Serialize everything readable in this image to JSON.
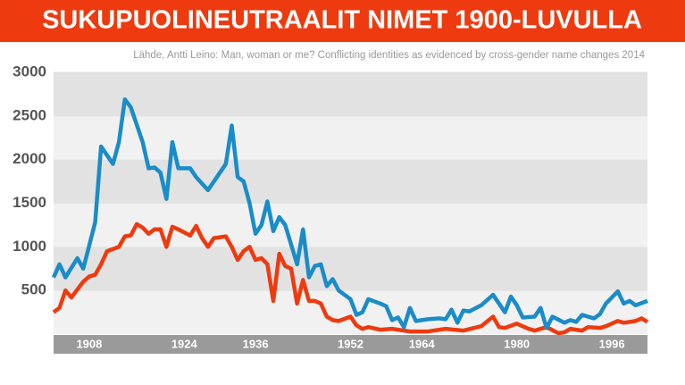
{
  "chart_data": {
    "type": "line",
    "title": "SUKUPUOLINEUTRAALIT NIMET 1900-LUVULLA",
    "subtitle": "Lähde, Antti Leino: Man, woman or me? Conflicting identities as evidenced by cross-gender name changes 2014",
    "xlim": [
      1902,
      2002
    ],
    "xticks": [
      1908,
      1924,
      1936,
      1952,
      1964,
      1980,
      1996
    ],
    "ylim": [
      0,
      3000
    ],
    "yticks": [
      500,
      1000,
      1500,
      2000,
      2500,
      3000
    ],
    "grid": true,
    "series": [
      {
        "color": "#1a8cc8",
        "x": [
          1902,
          1903,
          1904,
          1906,
          1907,
          1909,
          1910,
          1912,
          1913,
          1914,
          1915,
          1917,
          1918,
          1919,
          1920,
          1921,
          1922,
          1923,
          1925,
          1926,
          1928,
          1930,
          1931,
          1932,
          1933,
          1934,
          1935,
          1936,
          1937,
          1938,
          1939,
          1940,
          1941,
          1943,
          1944,
          1945,
          1946,
          1947,
          1948,
          1949,
          1950,
          1952,
          1953,
          1954,
          1955,
          1957,
          1958,
          1959,
          1960,
          1961,
          1962,
          1963,
          1965,
          1967,
          1968,
          1969,
          1970,
          1971,
          1972,
          1974,
          1976,
          1977,
          1978,
          1979,
          1980,
          1981,
          1983,
          1984,
          1985,
          1986,
          1988,
          1989,
          1990,
          1991,
          1993,
          1994,
          1995,
          1997,
          1998,
          1999,
          2000,
          2002
        ],
        "values": [
          650,
          800,
          650,
          870,
          750,
          1280,
          2150,
          1950,
          2200,
          2690,
          2600,
          2200,
          1900,
          1910,
          1850,
          1550,
          2200,
          1900,
          1900,
          1800,
          1650,
          1850,
          1950,
          2390,
          1800,
          1750,
          1500,
          1150,
          1250,
          1520,
          1180,
          1340,
          1250,
          800,
          1200,
          650,
          780,
          800,
          550,
          630,
          500,
          400,
          220,
          250,
          400,
          350,
          320,
          160,
          190,
          80,
          300,
          150,
          170,
          180,
          170,
          280,
          130,
          270,
          260,
          330,
          450,
          350,
          250,
          430,
          330,
          190,
          200,
          300,
          70,
          200,
          130,
          160,
          140,
          220,
          180,
          230,
          350,
          490,
          350,
          380,
          330,
          380
        ]
      },
      {
        "color": "#ee3a0f",
        "x": [
          1902,
          1903,
          1904,
          1905,
          1907,
          1908,
          1909,
          1910,
          1911,
          1913,
          1914,
          1915,
          1916,
          1917,
          1918,
          1919,
          1920,
          1921,
          1922,
          1923,
          1925,
          1926,
          1927,
          1928,
          1929,
          1931,
          1932,
          1933,
          1934,
          1935,
          1936,
          1937,
          1938,
          1939,
          1940,
          1941,
          1942,
          1943,
          1944,
          1945,
          1946,
          1947,
          1948,
          1949,
          1950,
          1952,
          1953,
          1954,
          1955,
          1957,
          1959,
          1962,
          1965,
          1968,
          1971,
          1974,
          1976,
          1977,
          1978,
          1980,
          1982,
          1983,
          1985,
          1987,
          1988,
          1989,
          1991,
          1992,
          1994,
          1995,
          1997,
          1998,
          2000,
          2001,
          2002
        ],
        "values": [
          250,
          300,
          500,
          420,
          600,
          660,
          680,
          800,
          950,
          1000,
          1120,
          1130,
          1260,
          1220,
          1150,
          1200,
          1200,
          1000,
          1230,
          1200,
          1130,
          1240,
          1100,
          1000,
          1100,
          1120,
          1000,
          850,
          950,
          1000,
          850,
          870,
          800,
          380,
          920,
          780,
          750,
          350,
          620,
          380,
          380,
          350,
          200,
          160,
          150,
          200,
          100,
          60,
          80,
          50,
          60,
          30,
          30,
          60,
          40,
          90,
          200,
          80,
          70,
          120,
          60,
          40,
          80,
          10,
          20,
          60,
          40,
          80,
          70,
          90,
          150,
          130,
          150,
          180,
          140
        ]
      }
    ]
  }
}
